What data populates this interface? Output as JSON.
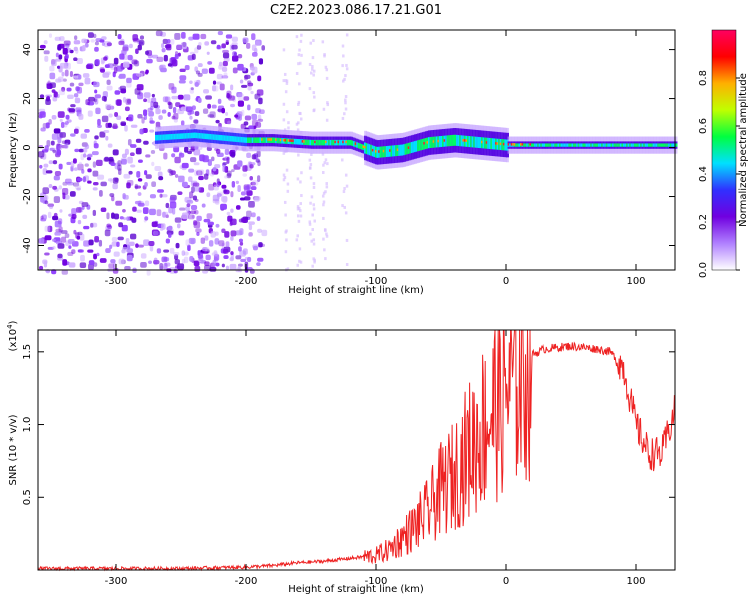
{
  "title": "C2E2.2023.086.17.21.G01",
  "chart_data": [
    {
      "type": "heatmap",
      "xlabel": "Height of straight line (km)",
      "ylabel": "Frequency (Hz)",
      "xlim": [
        -360,
        130
      ],
      "ylim": [
        -50,
        48
      ],
      "x_ticks": [
        -300,
        -200,
        -100,
        0,
        100
      ],
      "y_ticks": [
        -40,
        -20,
        0,
        20,
        40
      ],
      "colorbar": {
        "label": "Normalized spectral amplitude",
        "range": [
          0,
          1
        ],
        "ticks": [
          "0.0",
          "0.2",
          "0.4",
          "0.6",
          "0.8"
        ],
        "colormap": [
          "#ffffff",
          "#b080ff",
          "#7000e0",
          "#3030ff",
          "#00e0ff",
          "#00ff40",
          "#c0ff00",
          "#ffb000",
          "#ff0000",
          "#ff0060"
        ]
      },
      "description_series": {
        "name": "",
        "ridge": {
          "x": [
            -270,
            -240,
            -200,
            -180,
            -150,
            -120,
            -100,
            -80,
            -60,
            -40,
            -20,
            0,
            50,
            100,
            130
          ],
          "y": [
            4,
            5,
            3,
            3,
            2,
            2,
            -2,
            -1,
            2,
            3,
            2,
            1,
            1,
            1,
            1
          ]
        }
      }
    },
    {
      "type": "line",
      "xlabel": "Height of straight line (km)",
      "ylabel": "SNR (10 * v/v)",
      "y_multiplier": "(x10",
      "y_multiplier_exp": "4",
      "y_multiplier_close": ")",
      "xlim": [
        -360,
        130
      ],
      "ylim": [
        0,
        1.65
      ],
      "x_ticks": [
        -300,
        -200,
        -100,
        0,
        100
      ],
      "y_ticks": [
        0.5,
        1.0,
        1.5
      ],
      "y_tick_labels": [
        "0.5",
        "1.0",
        "1.5"
      ],
      "color": "#ee2222",
      "series": [
        {
          "name": "",
          "x": [
            -360,
            -300,
            -250,
            -200,
            -180,
            -160,
            -140,
            -120,
            -100,
            -90,
            -80,
            -70,
            -60,
            -50,
            -40,
            -30,
            -20,
            -10,
            0,
            10,
            20,
            30,
            40,
            50,
            60,
            70,
            80,
            90,
            100,
            110,
            120,
            130
          ],
          "y": [
            0.01,
            0.01,
            0.01,
            0.02,
            0.03,
            0.05,
            0.06,
            0.08,
            0.1,
            0.14,
            0.22,
            0.3,
            0.4,
            0.55,
            0.65,
            0.8,
            0.95,
            1.1,
            1.25,
            1.4,
            1.48,
            1.52,
            1.53,
            1.54,
            1.53,
            1.52,
            1.5,
            1.4,
            1.0,
            0.8,
            0.8,
            1.1
          ]
        }
      ]
    }
  ]
}
